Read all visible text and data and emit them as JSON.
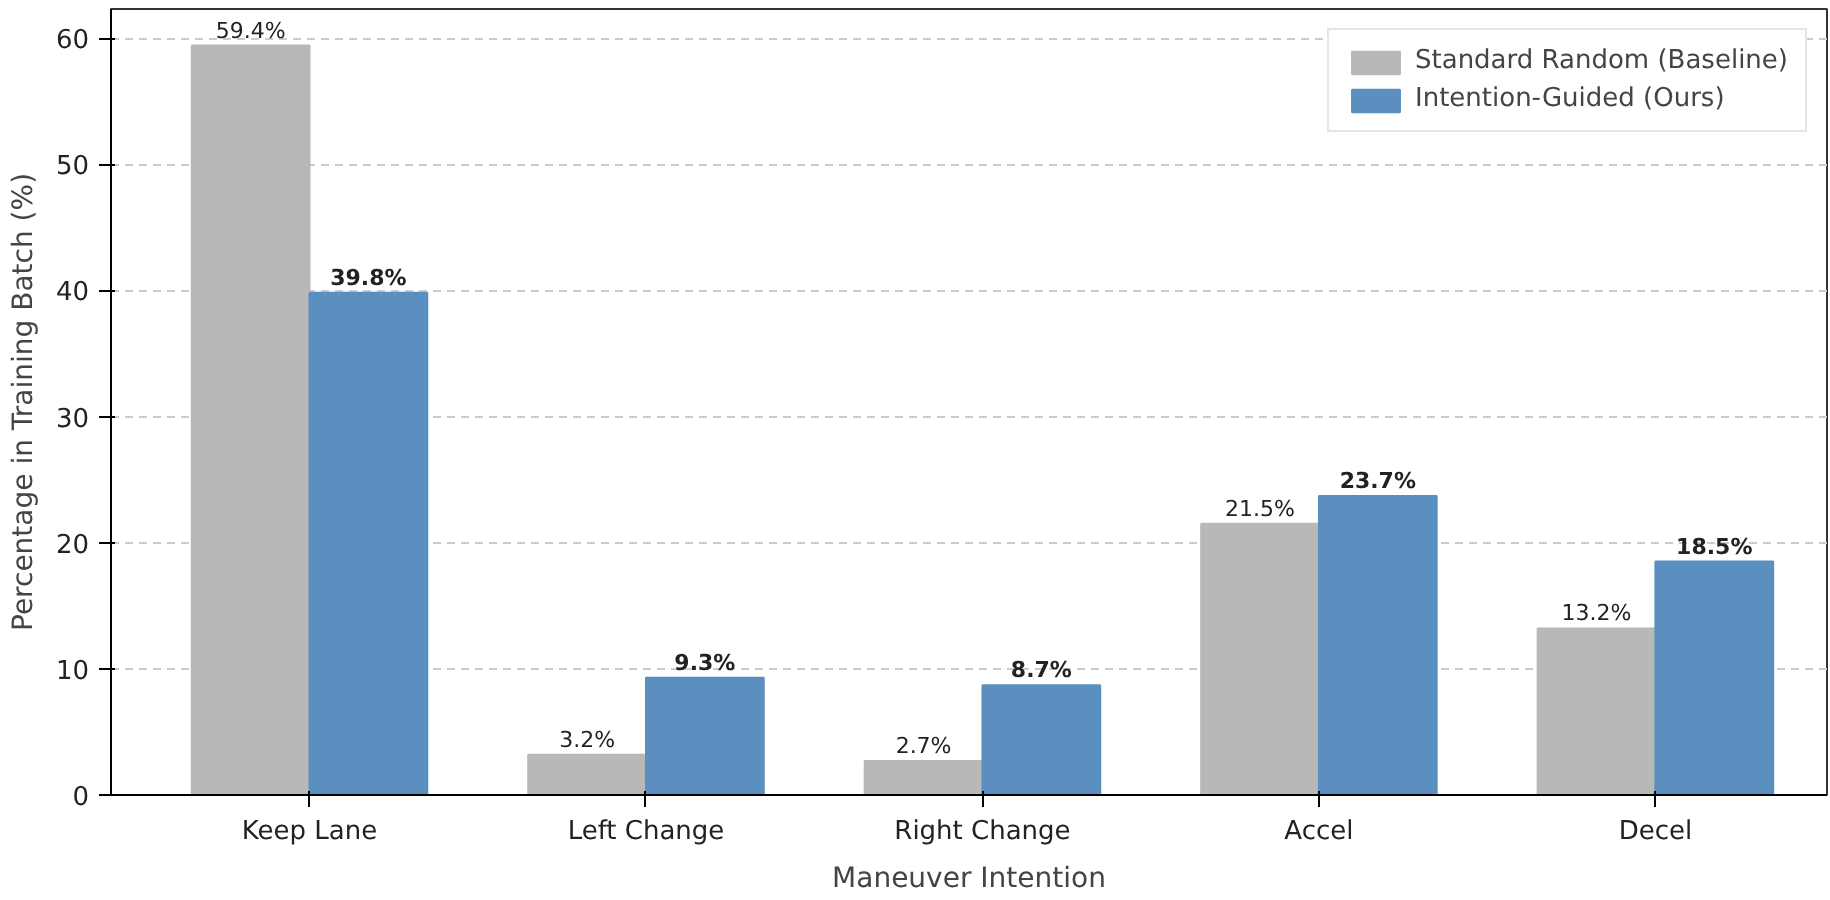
{
  "chart_data": {
    "type": "bar",
    "xlabel": "Maneuver Intention",
    "ylabel": "Percentage in Training Batch (%)",
    "categories": [
      "Keep Lane",
      "Left Change",
      "Right Change",
      "Accel",
      "Decel"
    ],
    "series": [
      {
        "name": "Standard Random (Baseline)",
        "color": "#b8b8b8",
        "values": [
          59.4,
          3.2,
          2.7,
          21.5,
          13.2
        ],
        "value_labels": [
          "59.4%",
          "3.2%",
          "2.7%",
          "21.5%",
          "13.2%"
        ]
      },
      {
        "name": "Intention-Guided (Ours)",
        "color": "#5a8fc0",
        "values": [
          39.8,
          9.3,
          8.7,
          23.7,
          18.5
        ],
        "value_labels": [
          "39.8%",
          "9.3%",
          "8.7%",
          "23.7%",
          "18.5%"
        ]
      }
    ],
    "ylim": [
      0,
      62.3
    ],
    "yticks": [
      0,
      10,
      20,
      30,
      40,
      50,
      60
    ],
    "grid": "y",
    "legend": "top right"
  }
}
